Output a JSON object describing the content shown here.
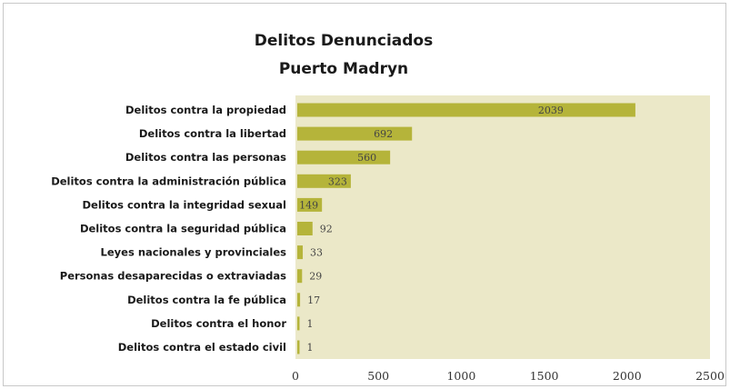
{
  "chart_data": {
    "type": "bar",
    "orientation": "horizontal",
    "title": "Delitos Denunciados",
    "subtitle": "Puerto Madryn",
    "categories": [
      "Delitos contra la propiedad",
      "Delitos contra la libertad",
      "Delitos contra las personas",
      "Delitos contra la administración pública",
      "Delitos contra la integridad sexual",
      "Delitos contra la seguridad pública",
      "Leyes nacionales y provinciales",
      "Personas desaparecidas o extraviadas",
      "Delitos contra la fe pública",
      "Delitos contra el honor",
      "Delitos contra el estado civil"
    ],
    "values": [
      2039,
      692,
      560,
      323,
      149,
      92,
      33,
      29,
      17,
      1,
      1
    ],
    "xlim": [
      0,
      2500
    ],
    "xticks": [
      0,
      500,
      1000,
      1500,
      2000,
      2500
    ],
    "xlabel": "",
    "ylabel": "",
    "grid": false,
    "legend": "none",
    "colors": {
      "bar": "#b5b43a",
      "plot_background": "#ebe8c8"
    }
  }
}
